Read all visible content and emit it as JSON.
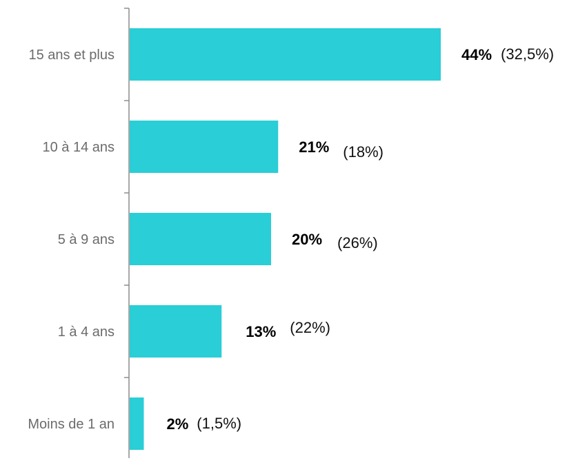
{
  "chart_data": {
    "type": "bar",
    "orientation": "horizontal",
    "title": "",
    "xlabel": "",
    "ylabel": "",
    "categories": [
      "15 ans et plus",
      "10 à 14 ans",
      "5 à 9 ans",
      "1 à 4 ans",
      "Moins de 1 an"
    ],
    "values": [
      44,
      21,
      20,
      13,
      2
    ],
    "value_labels": [
      "44%",
      "21%",
      "20%",
      "13%",
      "2%"
    ],
    "secondary_labels": [
      "(32,5%)",
      "(18%)",
      "(26%)",
      "(22%)",
      "(1,5%)"
    ],
    "xlim": [
      0,
      44
    ],
    "grid": false,
    "legend": "none",
    "colors": {
      "bar": "#29CED6",
      "axis": "#8c8c8c",
      "category_text": "#6b6b6b",
      "value_text": "#000000"
    }
  }
}
